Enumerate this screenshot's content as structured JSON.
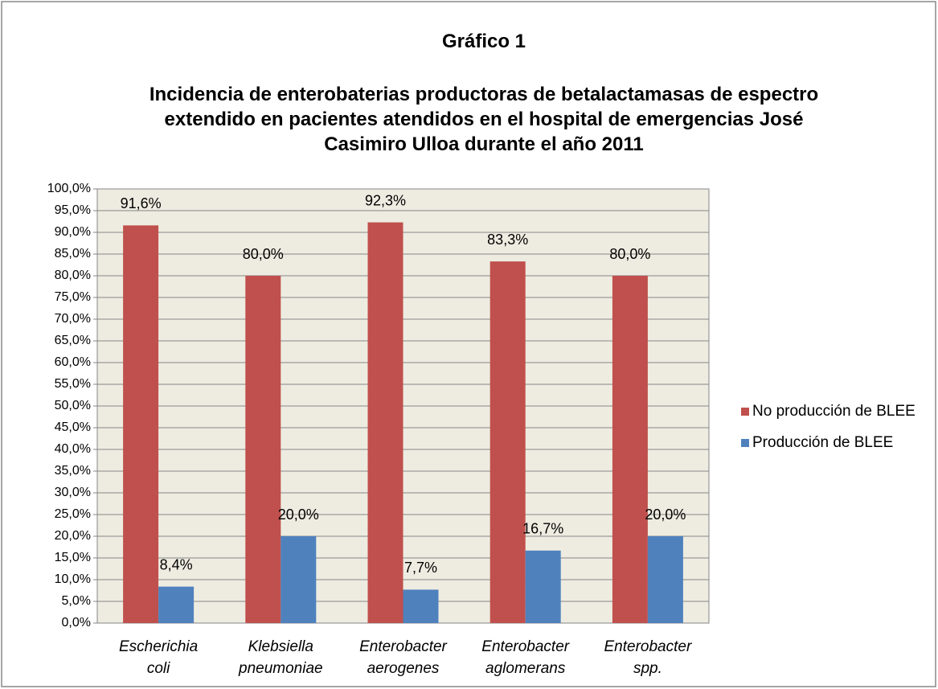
{
  "chart_data": {
    "type": "bar",
    "title": "Gráfico 1",
    "subtitle": "Incidencia de enterobaterias productoras de betalactamasas de espectro extendido en pacientes atendidos en el hospital de emergencias José Casimiro Ulloa durante el año 2011",
    "categories": [
      "Escherichia coli",
      "Klebsiella pneumoniae",
      "Enterobacter aerogenes",
      "Enterobacter aglomerans",
      "Enterobacter spp."
    ],
    "series": [
      {
        "name": "No producción de BLEE",
        "color": "#c0504d",
        "values": [
          91.6,
          80.0,
          92.3,
          83.3,
          80.0
        ],
        "value_labels": [
          "91,6%",
          "80,0%",
          "92,3%",
          "83,3%",
          "80,0%"
        ]
      },
      {
        "name": "Producción de BLEE",
        "color": "#4f81bd",
        "values": [
          8.4,
          20.0,
          7.7,
          16.7,
          20.0
        ],
        "value_labels": [
          "8,4%",
          "20,0%",
          "7,7%",
          "16,7%",
          "20,0%"
        ]
      }
    ],
    "ylim": [
      0,
      100
    ],
    "yticks": [
      {
        "value": 0,
        "label": "0,0%"
      },
      {
        "value": 5,
        "label": "5,0%"
      },
      {
        "value": 10,
        "label": "10,0%"
      },
      {
        "value": 15,
        "label": "15,0%"
      },
      {
        "value": 20,
        "label": "20,0%"
      },
      {
        "value": 25,
        "label": "25,0%"
      },
      {
        "value": 30,
        "label": "30,0%"
      },
      {
        "value": 35,
        "label": "35,0%"
      },
      {
        "value": 40,
        "label": "40,0%"
      },
      {
        "value": 45,
        "label": "45,0%"
      },
      {
        "value": 50,
        "label": "50,0%"
      },
      {
        "value": 55,
        "label": "55,0%"
      },
      {
        "value": 60,
        "label": "60,0%"
      },
      {
        "value": 65,
        "label": "65,0%"
      },
      {
        "value": 70,
        "label": "70,0%"
      },
      {
        "value": 75,
        "label": "75,0%"
      },
      {
        "value": 80,
        "label": "80,0%"
      },
      {
        "value": 85,
        "label": "85,0%"
      },
      {
        "value": 90,
        "label": "90,0%"
      },
      {
        "value": 95,
        "label": "95,0%"
      },
      {
        "value": 100,
        "label": "100,0%"
      }
    ],
    "grid": true,
    "legend": "right"
  }
}
